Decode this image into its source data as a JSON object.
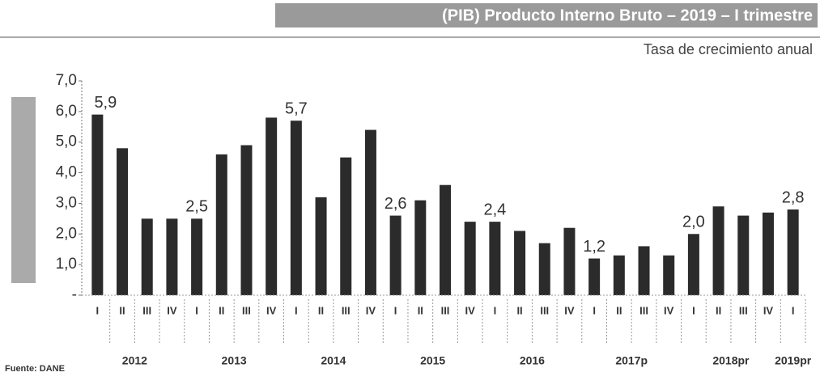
{
  "chart_data": {
    "type": "bar",
    "title": "(PIB) Producto Interno Bruto – 2019 – I trimestre",
    "subtitle": "Tasa de crecimiento anual",
    "source": "Fuente: DANE",
    "color": "#2b2b2b",
    "ylim": [
      0,
      7
    ],
    "yticks": [
      {
        "value": 0,
        "label": "-"
      },
      {
        "value": 1,
        "label": "1,0"
      },
      {
        "value": 2,
        "label": "2,0"
      },
      {
        "value": 3,
        "label": "3,0"
      },
      {
        "value": 4,
        "label": "4,0"
      },
      {
        "value": 5,
        "label": "5,0"
      },
      {
        "value": 6,
        "label": "6,0"
      },
      {
        "value": 7,
        "label": "7,0"
      }
    ],
    "groups": [
      {
        "name": "2012",
        "categories": [
          "I",
          "II",
          "III",
          "IV"
        ],
        "values": [
          5.9,
          4.8,
          2.5,
          2.5
        ],
        "value_labels": [
          "5,9",
          null,
          null,
          null
        ]
      },
      {
        "name": "2013",
        "categories": [
          "I",
          "II",
          "III",
          "IV"
        ],
        "values": [
          2.5,
          4.6,
          4.9,
          5.8
        ],
        "value_labels": [
          "2,5",
          null,
          null,
          null
        ]
      },
      {
        "name": "2014",
        "categories": [
          "I",
          "II",
          "III",
          "IV"
        ],
        "values": [
          5.7,
          3.2,
          4.5,
          5.4
        ],
        "value_labels": [
          "5,7",
          null,
          null,
          null
        ]
      },
      {
        "name": "2015",
        "categories": [
          "I",
          "II",
          "III",
          "IV"
        ],
        "values": [
          2.6,
          3.1,
          3.6,
          2.4
        ],
        "value_labels": [
          "2,6",
          null,
          null,
          null
        ]
      },
      {
        "name": "2016",
        "categories": [
          "I",
          "II",
          "III",
          "IV"
        ],
        "values": [
          2.4,
          2.1,
          1.7,
          2.2
        ],
        "value_labels": [
          "2,4",
          null,
          null,
          null
        ]
      },
      {
        "name": "2017p",
        "categories": [
          "I",
          "II",
          "III",
          "IV"
        ],
        "values": [
          1.2,
          1.3,
          1.6,
          1.3
        ],
        "value_labels": [
          "1,2",
          null,
          null,
          null
        ]
      },
      {
        "name": "2018pr",
        "categories": [
          "I",
          "II",
          "III",
          "IV"
        ],
        "values": [
          2.0,
          2.9,
          2.6,
          2.7
        ],
        "value_labels": [
          "2,0",
          null,
          null,
          null
        ]
      },
      {
        "name": "2019pr",
        "categories": [
          "I"
        ],
        "values": [
          2.8
        ],
        "value_labels": [
          "2,8"
        ]
      }
    ]
  }
}
